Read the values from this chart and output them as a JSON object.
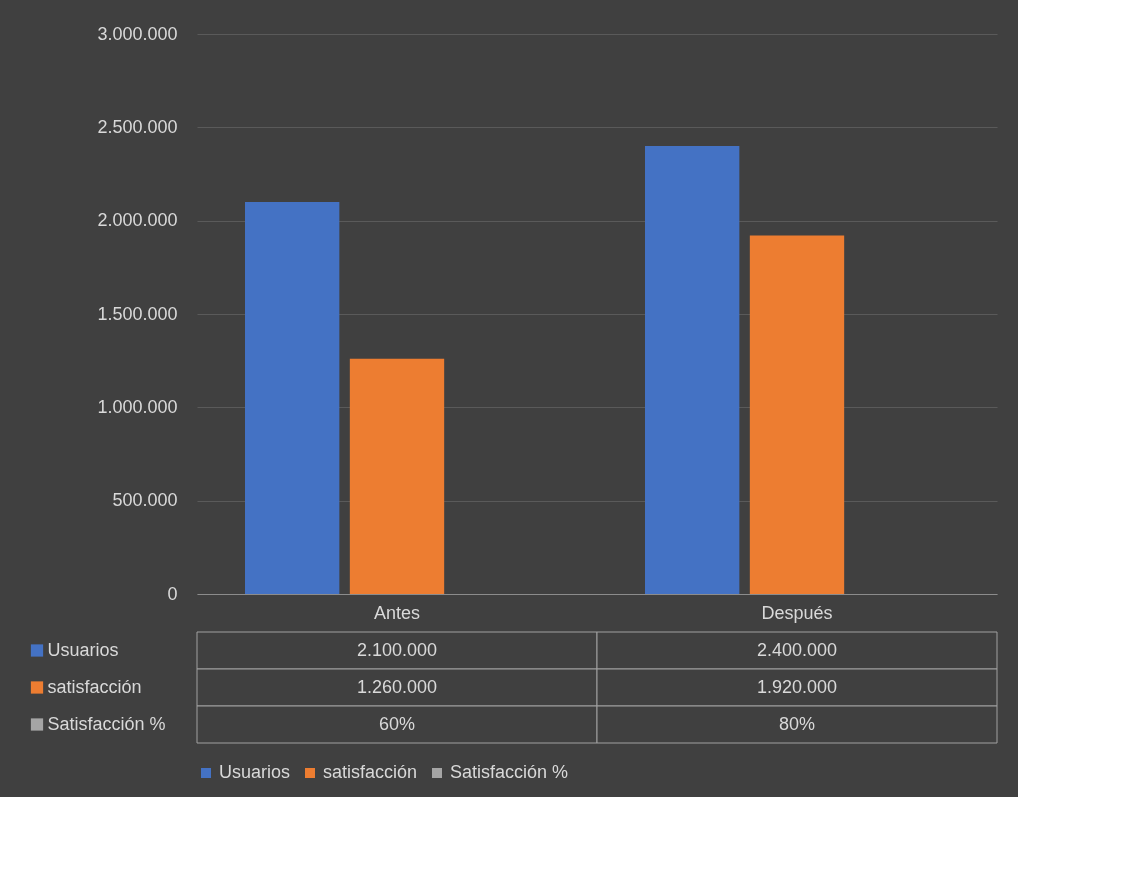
{
  "chart_data": {
    "type": "bar",
    "categories": [
      "Antes",
      "Después"
    ],
    "series": [
      {
        "name": "Usuarios",
        "color": "#4472c4",
        "values": [
          2100000,
          2400000
        ],
        "value_labels": [
          "2.100.000",
          "2.400.000"
        ]
      },
      {
        "name": "satisfacción",
        "color": "#ed7d31",
        "values": [
          1260000,
          1920000
        ],
        "value_labels": [
          "1.260.000",
          "1.920.000"
        ]
      },
      {
        "name": "Satisfacción %",
        "color": "#a5a5a5",
        "values": [
          60,
          80
        ],
        "value_labels": [
          "60%",
          "80%"
        ]
      }
    ],
    "ylim": [
      0,
      3000000
    ],
    "yticks": [
      {
        "value": 0,
        "label": "0"
      },
      {
        "value": 500000,
        "label": "500.000"
      },
      {
        "value": 1000000,
        "label": "1.000.000"
      },
      {
        "value": 1500000,
        "label": "1.500.000"
      },
      {
        "value": 2000000,
        "label": "2.000.000"
      },
      {
        "value": 2500000,
        "label": "2.500.000"
      },
      {
        "value": 3000000,
        "label": "3.000.000"
      }
    ],
    "grid": "y",
    "legend": "bottom"
  }
}
